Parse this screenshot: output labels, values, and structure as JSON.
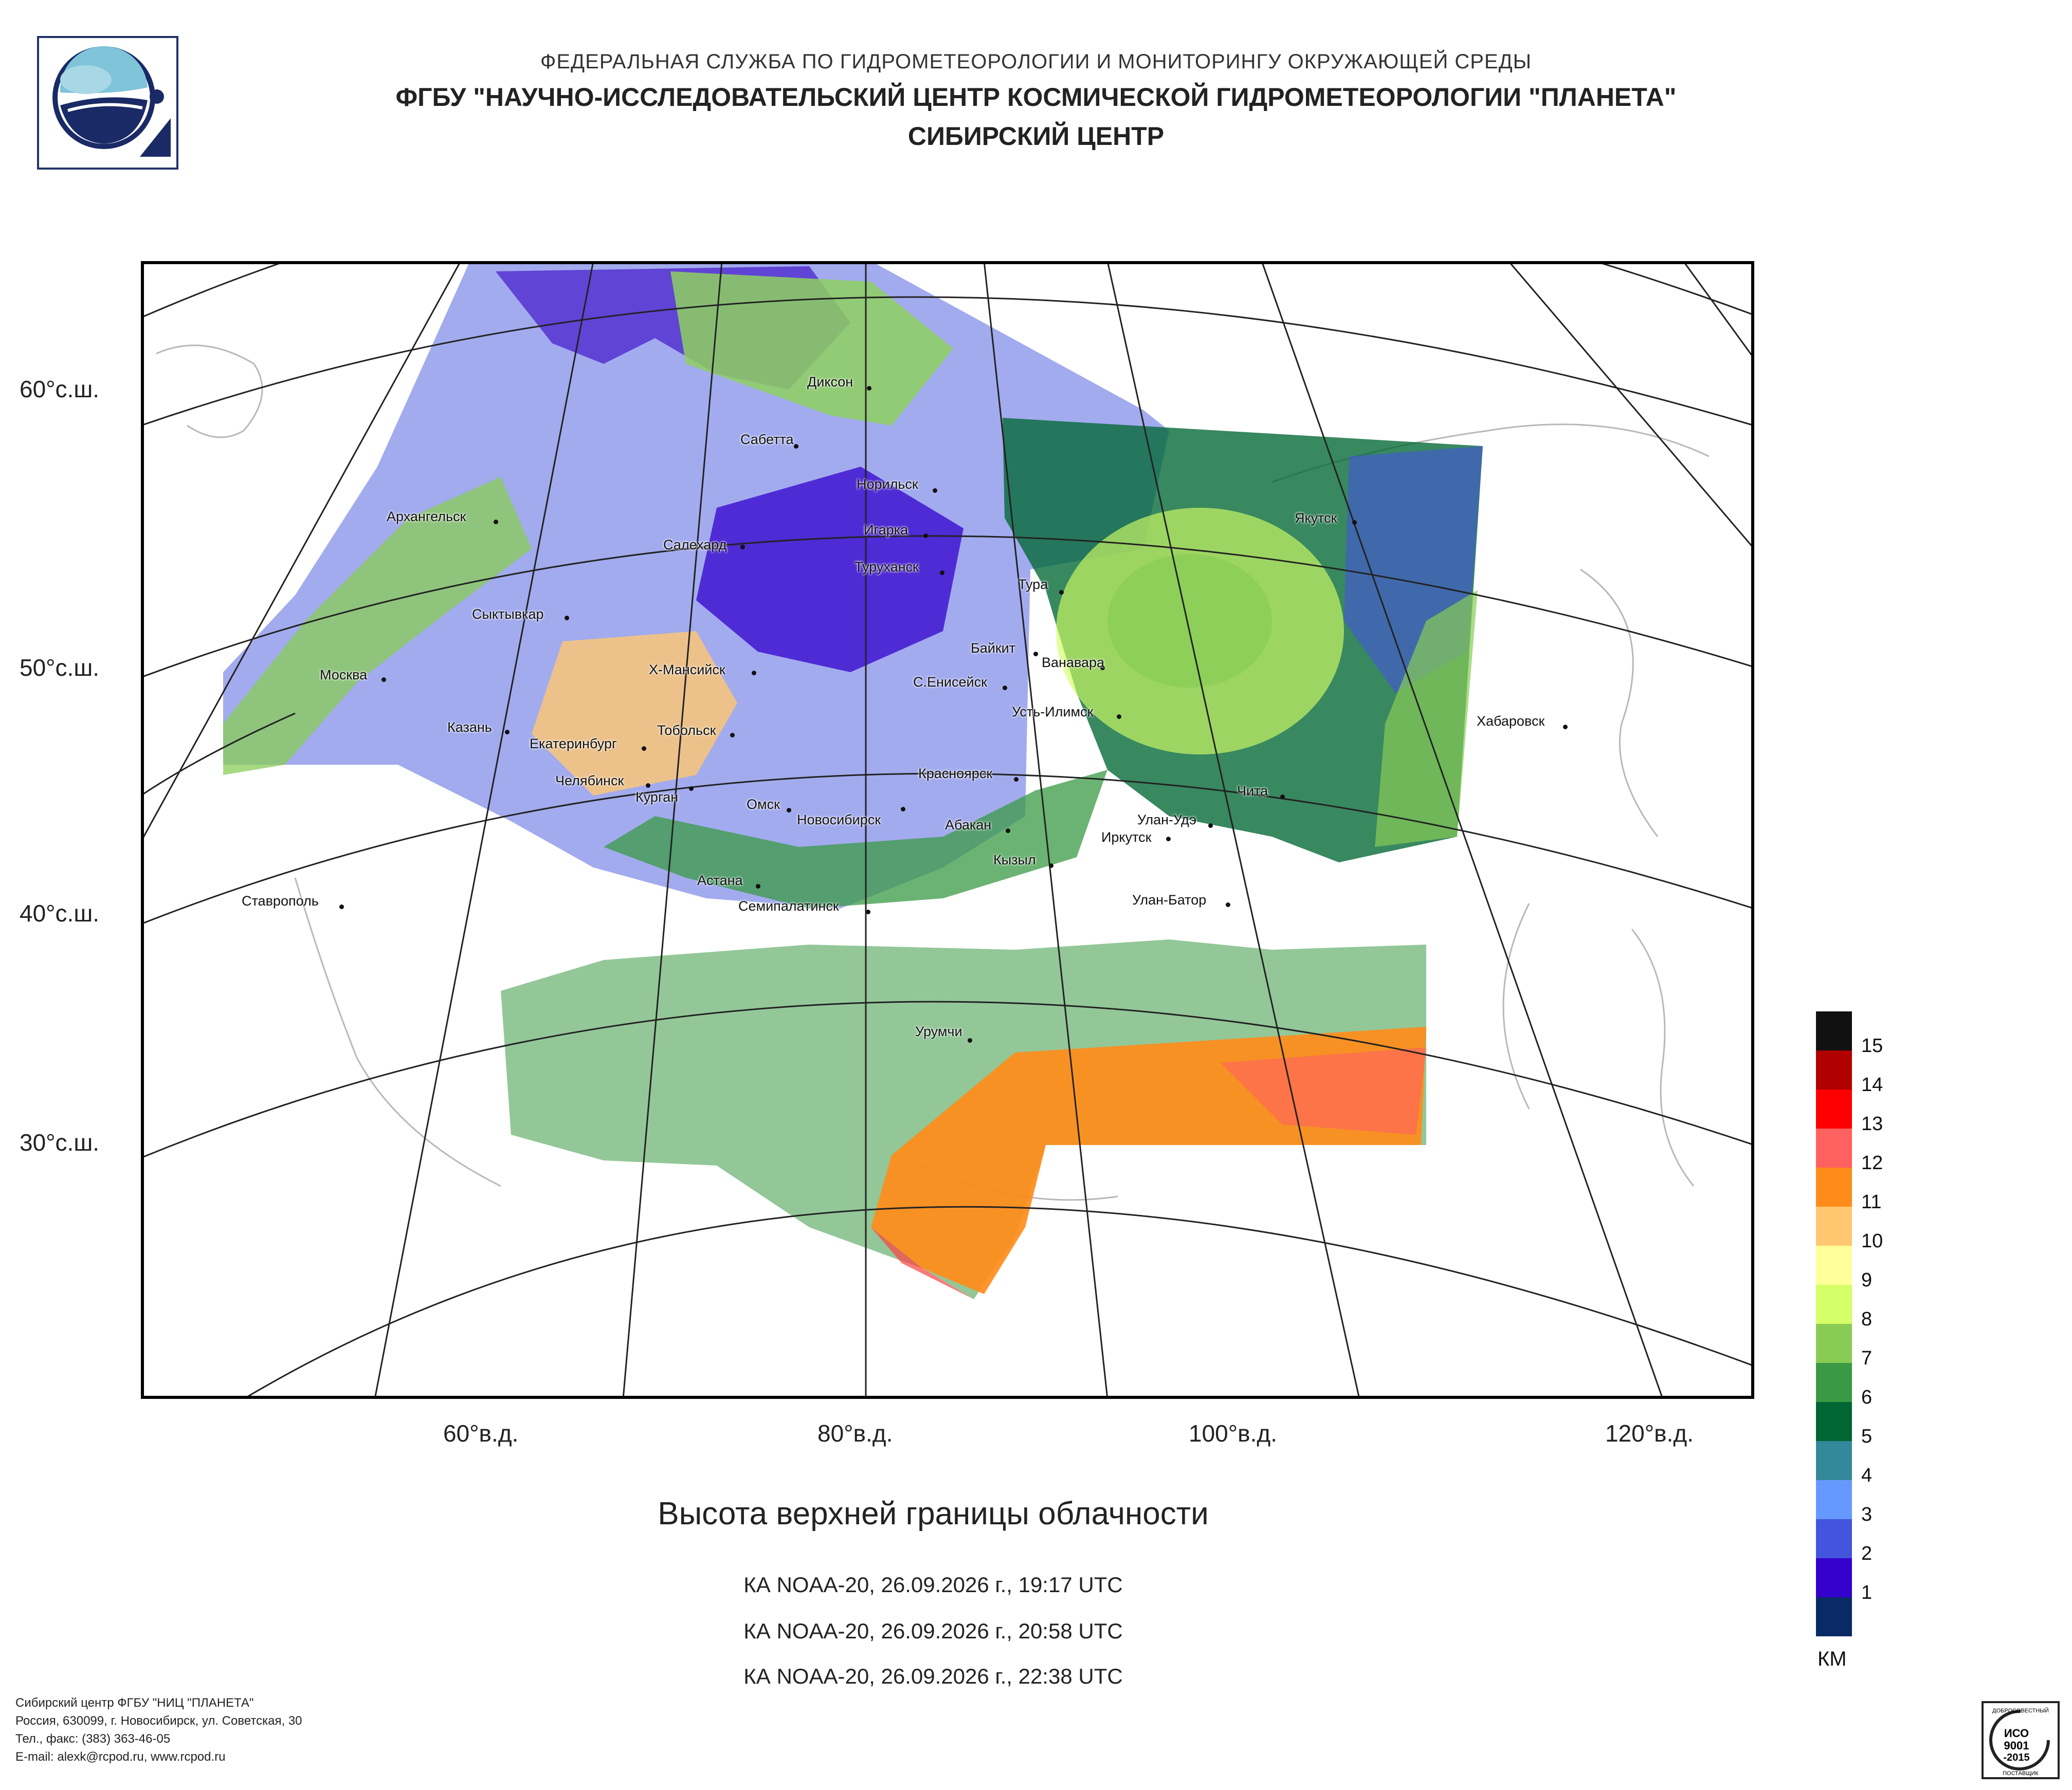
{
  "header": {
    "agency": "ФЕДЕРАЛЬНАЯ СЛУЖБА ПО ГИДРОМЕТЕОРОЛОГИИ И МОНИТОРИНГУ ОКРУЖАЮЩЕЙ СРЕДЫ",
    "institute": "ФГБУ \"НАУЧНО-ИССЛЕДОВАТЕЛЬСКИЙ ЦЕНТР КОСМИЧЕСКОЙ ГИДРОМЕТЕОРОЛОГИИ \"ПЛАНЕТА\"",
    "center": "СИБИРСКИЙ ЦЕНТР"
  },
  "map": {
    "lat_labels": [
      "60°с.ш.",
      "50°с.ш.",
      "40°с.ш.",
      "30°с.ш."
    ],
    "lon_labels": [
      "60°в.д.",
      "80°в.д.",
      "100°в.д.",
      "120°в.д."
    ],
    "cities": [
      "Архангельск",
      "Диксон",
      "Сабетта",
      "Норильск",
      "Салехард",
      "Игарка",
      "Туруханск",
      "Тура",
      "Якутск",
      "Сыктывкар",
      "Москва",
      "Байкит",
      "Ванавара",
      "Х-Мансийск",
      "С.Енисейск",
      "Усть-Илимск",
      "Казань",
      "Екатеринбург",
      "Тобольск",
      "Хабаровск",
      "Челябинск",
      "Курган",
      "Красноярск",
      "Чита",
      "Омск",
      "Новосибирск",
      "Абакан",
      "Улан-Удэ",
      "Иркутск",
      "Кызыл",
      "Астана",
      "Ставрополь",
      "Семипалатинск",
      "Улан-Батор",
      "Урумчи"
    ]
  },
  "title": "Высота верхней границы облачности",
  "passes": [
    "КА NOAA-20, 26.09.2026 г., 19:17 UTC",
    "КА NOAA-20, 26.09.2026 г., 20:58 UTC",
    "КА NOAA-20, 26.09.2026 г., 22:38 UTC"
  ],
  "legend": {
    "unit": "КМ",
    "levels": [
      {
        "label": "15",
        "color": "#111111"
      },
      {
        "label": "14",
        "color": "#b00000"
      },
      {
        "label": "13",
        "color": "#ff0000"
      },
      {
        "label": "12",
        "color": "#ff6060"
      },
      {
        "label": "11",
        "color": "#ff8c1a"
      },
      {
        "label": "10",
        "color": "#ffc870"
      },
      {
        "label": "9",
        "color": "#ffff99"
      },
      {
        "label": "8",
        "color": "#d4ff66"
      },
      {
        "label": "7",
        "color": "#88cc55"
      },
      {
        "label": "6",
        "color": "#3a9944"
      },
      {
        "label": "5",
        "color": "#006633"
      },
      {
        "label": "4",
        "color": "#338899"
      },
      {
        "label": "3",
        "color": "#6699ff"
      },
      {
        "label": "2",
        "color": "#4455dd"
      },
      {
        "label": "1",
        "color": "#3300cc"
      },
      {
        "label": "",
        "color": "#0a2a66"
      }
    ]
  },
  "footer": {
    "line1": "Сибирский центр ФГБУ \"НИЦ \"ПЛАНЕТА\"",
    "line2": "Россия, 630099, г. Новосибирск, ул. Советская, 30",
    "line3": "Тел., факс: (383) 363-46-05",
    "line4": "E-mail: alexk@rcpod.ru, www.rcpod.ru"
  },
  "cert": {
    "line1": "ДОБРОСОВЕСТНЫЙ",
    "line2": "ИСО",
    "line3": "9001",
    "line4": "-2015",
    "line5": "ПОСТАВЩИК"
  }
}
